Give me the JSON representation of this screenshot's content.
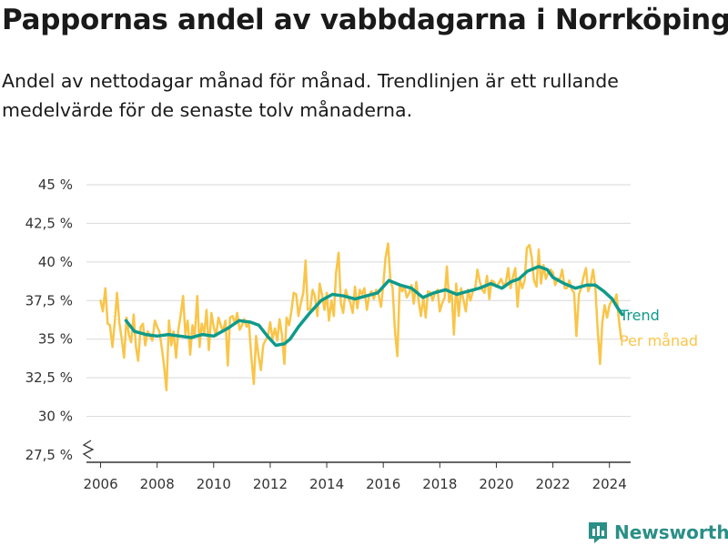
{
  "title": "Pappornas andel av vabbdagarna i Norrköping",
  "subtitle": "Andel av nettodagar månad för månad. Trendlinjen är ett rullande medelvärde för de senaste tolv månaderna.",
  "brand": {
    "name": "Newsworthy",
    "icon": "newsworthy-logo-icon"
  },
  "colors": {
    "trend": "#0f9a8a",
    "monthly": "#f9c549",
    "grid": "#d9d9d9",
    "axis": "#333333",
    "brand": "#2a8f86"
  },
  "chart_data": {
    "type": "line",
    "title": "Pappornas andel av vabbdagarna i Norrköping",
    "xlabel": "",
    "ylabel": "",
    "xlim": [
      2005.5,
      2024.75
    ],
    "ylim": [
      27.5,
      45
    ],
    "axis_break": true,
    "grid": "horizontal",
    "legend": "right-end-labels",
    "x_ticks": [
      2006,
      2008,
      2010,
      2012,
      2014,
      2016,
      2018,
      2020,
      2022,
      2024
    ],
    "x_tick_labels": [
      "2006",
      "2008",
      "2010",
      "2012",
      "2014",
      "2016",
      "2018",
      "2020",
      "2022",
      "2024"
    ],
    "y_ticks": [
      27.5,
      30,
      32.5,
      35,
      37.5,
      40,
      42.5,
      45
    ],
    "y_tick_labels": [
      "27,5 %",
      "30 %",
      "32,5 %",
      "35 %",
      "37,5 %",
      "40 %",
      "42,5 %",
      "45 %"
    ],
    "series": [
      {
        "name": "Trend",
        "color": "#0f9a8a",
        "x": [
          2006.9,
          2007.2,
          2007.6,
          2008.0,
          2008.4,
          2008.8,
          2009.2,
          2009.6,
          2010.0,
          2010.5,
          2010.9,
          2011.3,
          2011.6,
          2011.9,
          2012.2,
          2012.5,
          2012.7,
          2013.0,
          2013.4,
          2013.8,
          2014.2,
          2014.6,
          2015.0,
          2015.4,
          2015.8,
          2016.2,
          2016.6,
          2017.0,
          2017.4,
          2017.8,
          2018.2,
          2018.6,
          2019.0,
          2019.4,
          2019.8,
          2020.2,
          2020.5,
          2020.8,
          2021.1,
          2021.5,
          2021.8,
          2022.0,
          2022.4,
          2022.8,
          2023.2,
          2023.5,
          2023.8,
          2024.1,
          2024.3,
          2024.45
        ],
        "values": [
          36.2,
          35.5,
          35.3,
          35.2,
          35.3,
          35.2,
          35.1,
          35.3,
          35.2,
          35.7,
          36.2,
          36.1,
          35.9,
          35.2,
          34.6,
          34.7,
          35.0,
          35.8,
          36.7,
          37.5,
          37.9,
          37.8,
          37.6,
          37.8,
          38.0,
          38.8,
          38.5,
          38.3,
          37.7,
          38.0,
          38.2,
          37.9,
          38.1,
          38.3,
          38.6,
          38.3,
          38.7,
          38.9,
          39.4,
          39.7,
          39.5,
          39.0,
          38.6,
          38.3,
          38.5,
          38.5,
          38.1,
          37.6,
          37.0,
          36.6
        ]
      },
      {
        "name": "Per månad",
        "color": "#f9c549",
        "x": [
          2006.0,
          2006.08,
          2006.17,
          2006.25,
          2006.33,
          2006.42,
          2006.5,
          2006.58,
          2006.67,
          2006.75,
          2006.83,
          2006.92,
          2007.0,
          2007.08,
          2007.17,
          2007.25,
          2007.33,
          2007.42,
          2007.5,
          2007.58,
          2007.67,
          2007.75,
          2007.83,
          2007.92,
          2008.0,
          2008.08,
          2008.17,
          2008.25,
          2008.33,
          2008.42,
          2008.5,
          2008.58,
          2008.67,
          2008.75,
          2008.83,
          2008.92,
          2009.0,
          2009.08,
          2009.17,
          2009.25,
          2009.33,
          2009.42,
          2009.5,
          2009.58,
          2009.67,
          2009.75,
          2009.83,
          2009.92,
          2010.0,
          2010.08,
          2010.17,
          2010.25,
          2010.33,
          2010.42,
          2010.5,
          2010.58,
          2010.67,
          2010.75,
          2010.83,
          2010.92,
          2011.0,
          2011.08,
          2011.17,
          2011.25,
          2011.33,
          2011.42,
          2011.5,
          2011.58,
          2011.67,
          2011.75,
          2011.83,
          2011.92,
          2012.0,
          2012.08,
          2012.17,
          2012.25,
          2012.33,
          2012.42,
          2012.5,
          2012.58,
          2012.67,
          2012.75,
          2012.83,
          2012.92,
          2013.0,
          2013.08,
          2013.17,
          2013.25,
          2013.33,
          2013.42,
          2013.5,
          2013.58,
          2013.67,
          2013.75,
          2013.83,
          2013.92,
          2014.0,
          2014.08,
          2014.17,
          2014.25,
          2014.33,
          2014.42,
          2014.5,
          2014.58,
          2014.67,
          2014.75,
          2014.83,
          2014.92,
          2015.0,
          2015.08,
          2015.17,
          2015.25,
          2015.33,
          2015.42,
          2015.5,
          2015.58,
          2015.67,
          2015.75,
          2015.83,
          2015.92,
          2016.0,
          2016.08,
          2016.17,
          2016.25,
          2016.33,
          2016.42,
          2016.5,
          2016.58,
          2016.67,
          2016.75,
          2016.83,
          2016.92,
          2017.0,
          2017.08,
          2017.17,
          2017.25,
          2017.33,
          2017.42,
          2017.5,
          2017.58,
          2017.67,
          2017.75,
          2017.83,
          2017.92,
          2018.0,
          2018.08,
          2018.17,
          2018.25,
          2018.33,
          2018.42,
          2018.5,
          2018.58,
          2018.67,
          2018.75,
          2018.83,
          2018.92,
          2019.0,
          2019.08,
          2019.17,
          2019.25,
          2019.33,
          2019.42,
          2019.5,
          2019.58,
          2019.67,
          2019.75,
          2019.83,
          2019.92,
          2020.0,
          2020.08,
          2020.17,
          2020.25,
          2020.33,
          2020.42,
          2020.5,
          2020.58,
          2020.67,
          2020.75,
          2020.83,
          2020.92,
          2021.0,
          2021.08,
          2021.17,
          2021.25,
          2021.33,
          2021.42,
          2021.5,
          2021.58,
          2021.67,
          2021.75,
          2021.83,
          2021.92,
          2022.0,
          2022.08,
          2022.17,
          2022.25,
          2022.33,
          2022.42,
          2022.5,
          2022.58,
          2022.67,
          2022.75,
          2022.83,
          2022.92,
          2023.0,
          2023.08,
          2023.17,
          2023.25,
          2023.33,
          2023.42,
          2023.5,
          2023.58,
          2023.67,
          2023.75,
          2023.83,
          2023.92,
          2024.0,
          2024.08,
          2024.17,
          2024.25,
          2024.33,
          2024.42
        ],
        "values": [
          37.5,
          36.8,
          38.3,
          36.0,
          35.9,
          34.5,
          36.1,
          38.0,
          36.0,
          35.0,
          33.8,
          36.4,
          35.3,
          34.8,
          36.6,
          34.5,
          33.6,
          35.8,
          36.0,
          34.6,
          35.5,
          35.2,
          34.9,
          36.2,
          35.8,
          35.5,
          34.4,
          33.2,
          31.7,
          36.2,
          34.6,
          35.5,
          33.8,
          35.6,
          36.5,
          37.8,
          35.3,
          36.2,
          34.0,
          35.9,
          35.2,
          37.8,
          34.5,
          36.0,
          35.4,
          36.9,
          34.3,
          36.7,
          35.8,
          35.2,
          36.4,
          35.9,
          35.5,
          36.2,
          33.3,
          36.4,
          36.5,
          36.0,
          36.7,
          35.6,
          35.9,
          36.3,
          35.8,
          36.0,
          33.9,
          32.1,
          35.2,
          34.0,
          33.0,
          34.6,
          34.9,
          35.2,
          36.1,
          35.0,
          35.7,
          34.9,
          36.3,
          35.2,
          33.4,
          36.4,
          35.9,
          36.8,
          38.0,
          37.9,
          36.5,
          37.3,
          38.0,
          40.1,
          36.9,
          37.0,
          38.2,
          37.8,
          36.5,
          38.6,
          37.9,
          36.9,
          38.0,
          36.2,
          37.5,
          36.5,
          39.3,
          40.6,
          37.3,
          36.7,
          38.2,
          37.7,
          37.4,
          36.7,
          38.4,
          37.0,
          38.2,
          37.9,
          38.3,
          36.9,
          37.8,
          38.1,
          37.6,
          38.2,
          37.9,
          37.1,
          38.5,
          40.3,
          41.2,
          38.9,
          38.3,
          35.4,
          33.9,
          38.5,
          38.1,
          38.4,
          37.7,
          38.0,
          38.5,
          37.3,
          38.7,
          37.5,
          36.5,
          37.7,
          36.4,
          38.1,
          38.0,
          37.5,
          38.0,
          38.2,
          36.8,
          37.3,
          37.7,
          39.7,
          37.4,
          38.0,
          35.3,
          38.6,
          36.5,
          38.3,
          37.6,
          36.8,
          38.2,
          37.5,
          38.1,
          38.2,
          39.5,
          38.7,
          38.2,
          38.0,
          39.1,
          37.6,
          38.8,
          38.7,
          38.4,
          38.6,
          38.9,
          38.5,
          38.6,
          39.6,
          38.3,
          39.0,
          39.6,
          37.1,
          38.9,
          38.3,
          38.8,
          40.9,
          41.1,
          40.3,
          38.8,
          38.4,
          40.8,
          38.6,
          39.8,
          38.9,
          39.3,
          39.5,
          39.3,
          38.5,
          38.9,
          38.9,
          39.5,
          38.3,
          38.3,
          38.8,
          38.2,
          38.0,
          35.2,
          37.9,
          38.3,
          39.0,
          39.6,
          38.1,
          38.5,
          39.5,
          38.4,
          35.7,
          33.4,
          36.1,
          37.2,
          36.4,
          37.2,
          37.5,
          37.4,
          37.9,
          36.3,
          35.0
        ]
      }
    ]
  }
}
